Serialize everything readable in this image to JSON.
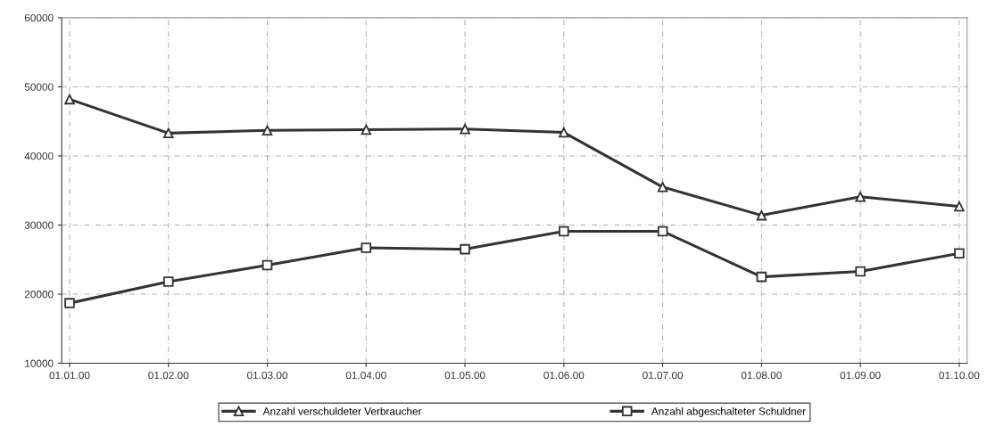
{
  "chart_data": {
    "type": "line",
    "categories": [
      "01.01.00",
      "01.02.00",
      "01.03.00",
      "01.04.00",
      "01.05.00",
      "01.06.00",
      "01.07.00",
      "01.08.00",
      "01.09.00",
      "01.10.00"
    ],
    "series": [
      {
        "name": "Anzahl verschuldeter Verbraucher",
        "color": "#333333",
        "marker": "triangle",
        "values": [
          48200,
          43300,
          43700,
          43800,
          43900,
          43400,
          35500,
          31400,
          34100,
          32700
        ]
      },
      {
        "name": "Anzahl abgeschalteter Schuldner",
        "color": "#333333",
        "marker": "square",
        "values": [
          18700,
          21800,
          24200,
          26700,
          26500,
          29100,
          29100,
          22500,
          23300,
          25900
        ]
      }
    ],
    "ylim": [
      10000,
      60000
    ],
    "yticks": [
      10000,
      20000,
      30000,
      40000,
      50000,
      60000
    ],
    "grid": true,
    "legend": "bottom",
    "line_style": "solid"
  }
}
